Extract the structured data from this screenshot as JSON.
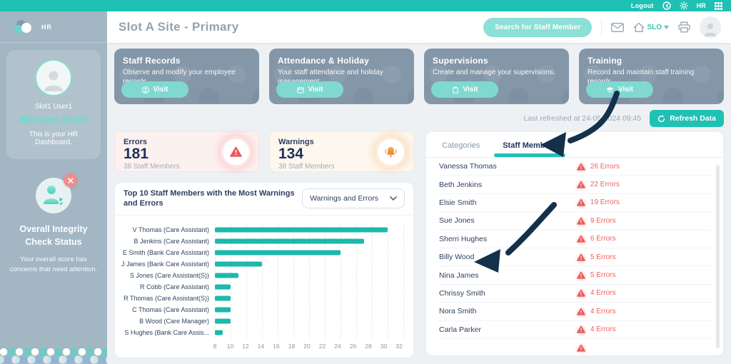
{
  "topbar": {
    "logout_label": "Logout",
    "hr_label": "HR"
  },
  "header": {
    "title": "Slot A Site - Primary",
    "search_button": "Search for Staff Member",
    "site_code": "SLO"
  },
  "sidebar": {
    "logo_label": "HR",
    "user_name": "Slot1 User1",
    "welcome": "Welcome Slot1!",
    "user_desc": "This is your HR Dashboard.",
    "integrity_title": "Overall Integrity Check Status",
    "integrity_desc": "Your overall score has concerns that need attention."
  },
  "nav_cards": [
    {
      "title": "Staff Records",
      "desc": "Observe and modify your employee records.",
      "button": "Visit"
    },
    {
      "title": "Attendance & Holiday",
      "desc": "Your staff attendance and holiday management.",
      "button": "Visit"
    },
    {
      "title": "Supervisions",
      "desc": "Create and manage your supervisions.",
      "button": "Visit"
    },
    {
      "title": "Training",
      "desc": "Record and maintain staff training records.",
      "button": "Visit"
    }
  ],
  "refresh": {
    "last_refreshed": "Last refreshed at 24-05-2024 09:45",
    "button": "Refresh Data"
  },
  "stats": {
    "errors": {
      "label": "Errors",
      "value": "181",
      "sub": "38 Staff Members"
    },
    "warnings": {
      "label": "Warnings",
      "value": "134",
      "sub": "38 Staff Members"
    }
  },
  "chart_card": {
    "title": "Top 10 Staff Members with the Most Warnings and Errors",
    "dropdown": "Warnings and Errors"
  },
  "chart_data": {
    "type": "bar",
    "orientation": "horizontal",
    "title": "Top 10 Staff Members with the Most Warnings and Errors",
    "categories": [
      "V Thomas (Care Assistant)",
      "B Jenkins (Care Assistant)",
      "E Smith (Bank Care Assistant)",
      "J James (Bank Care Assistant)",
      "S Jones (Care Assistant(S))",
      "R Cobb (Care Assistant)",
      "R Thomas (Care Assistant(S))",
      "C Thomas (Care Assistant)",
      "B Wood (Care Manager)",
      "S Hughes (Bank Care Assis..."
    ],
    "values": [
      30,
      27,
      24,
      14,
      11,
      10,
      10,
      10,
      10,
      9
    ],
    "xlim": [
      8,
      32
    ],
    "xticks": [
      8,
      10,
      12,
      14,
      16,
      18,
      20,
      22,
      24,
      26,
      28,
      30,
      32
    ],
    "bar_color": "#1cb9ac",
    "grid": true,
    "legend": null
  },
  "right_panel": {
    "tabs": [
      {
        "label": "Categories",
        "active": false
      },
      {
        "label": "Staff Members",
        "active": true
      }
    ],
    "staff": [
      {
        "name": "Vanessa Thomas",
        "errors_label": "26 Errors"
      },
      {
        "name": "Beth Jenkins",
        "errors_label": "22 Errors"
      },
      {
        "name": "Elsie Smith",
        "errors_label": "19 Errors"
      },
      {
        "name": "Sue Jones",
        "errors_label": "9 Errors"
      },
      {
        "name": "Sherri Hughes",
        "errors_label": "6 Errors"
      },
      {
        "name": "Billy Wood",
        "errors_label": "5 Errors"
      },
      {
        "name": "Nina James",
        "errors_label": "5 Errors"
      },
      {
        "name": "Chrissy Smith",
        "errors_label": "4 Errors"
      },
      {
        "name": "Nora Smith",
        "errors_label": "4 Errors"
      },
      {
        "name": "Carla Parker",
        "errors_label": "4 Errors"
      }
    ],
    "has_more_rows": true
  },
  "colors": {
    "teal": "#1fc1b4",
    "light_teal": "#7fd9d0",
    "navy": "#22355c",
    "red": "#f15f5f",
    "orange": "#f0872e",
    "slate_card": "#8497a9",
    "sidebar": "#a2b6c3",
    "arrow": "#14304b"
  }
}
